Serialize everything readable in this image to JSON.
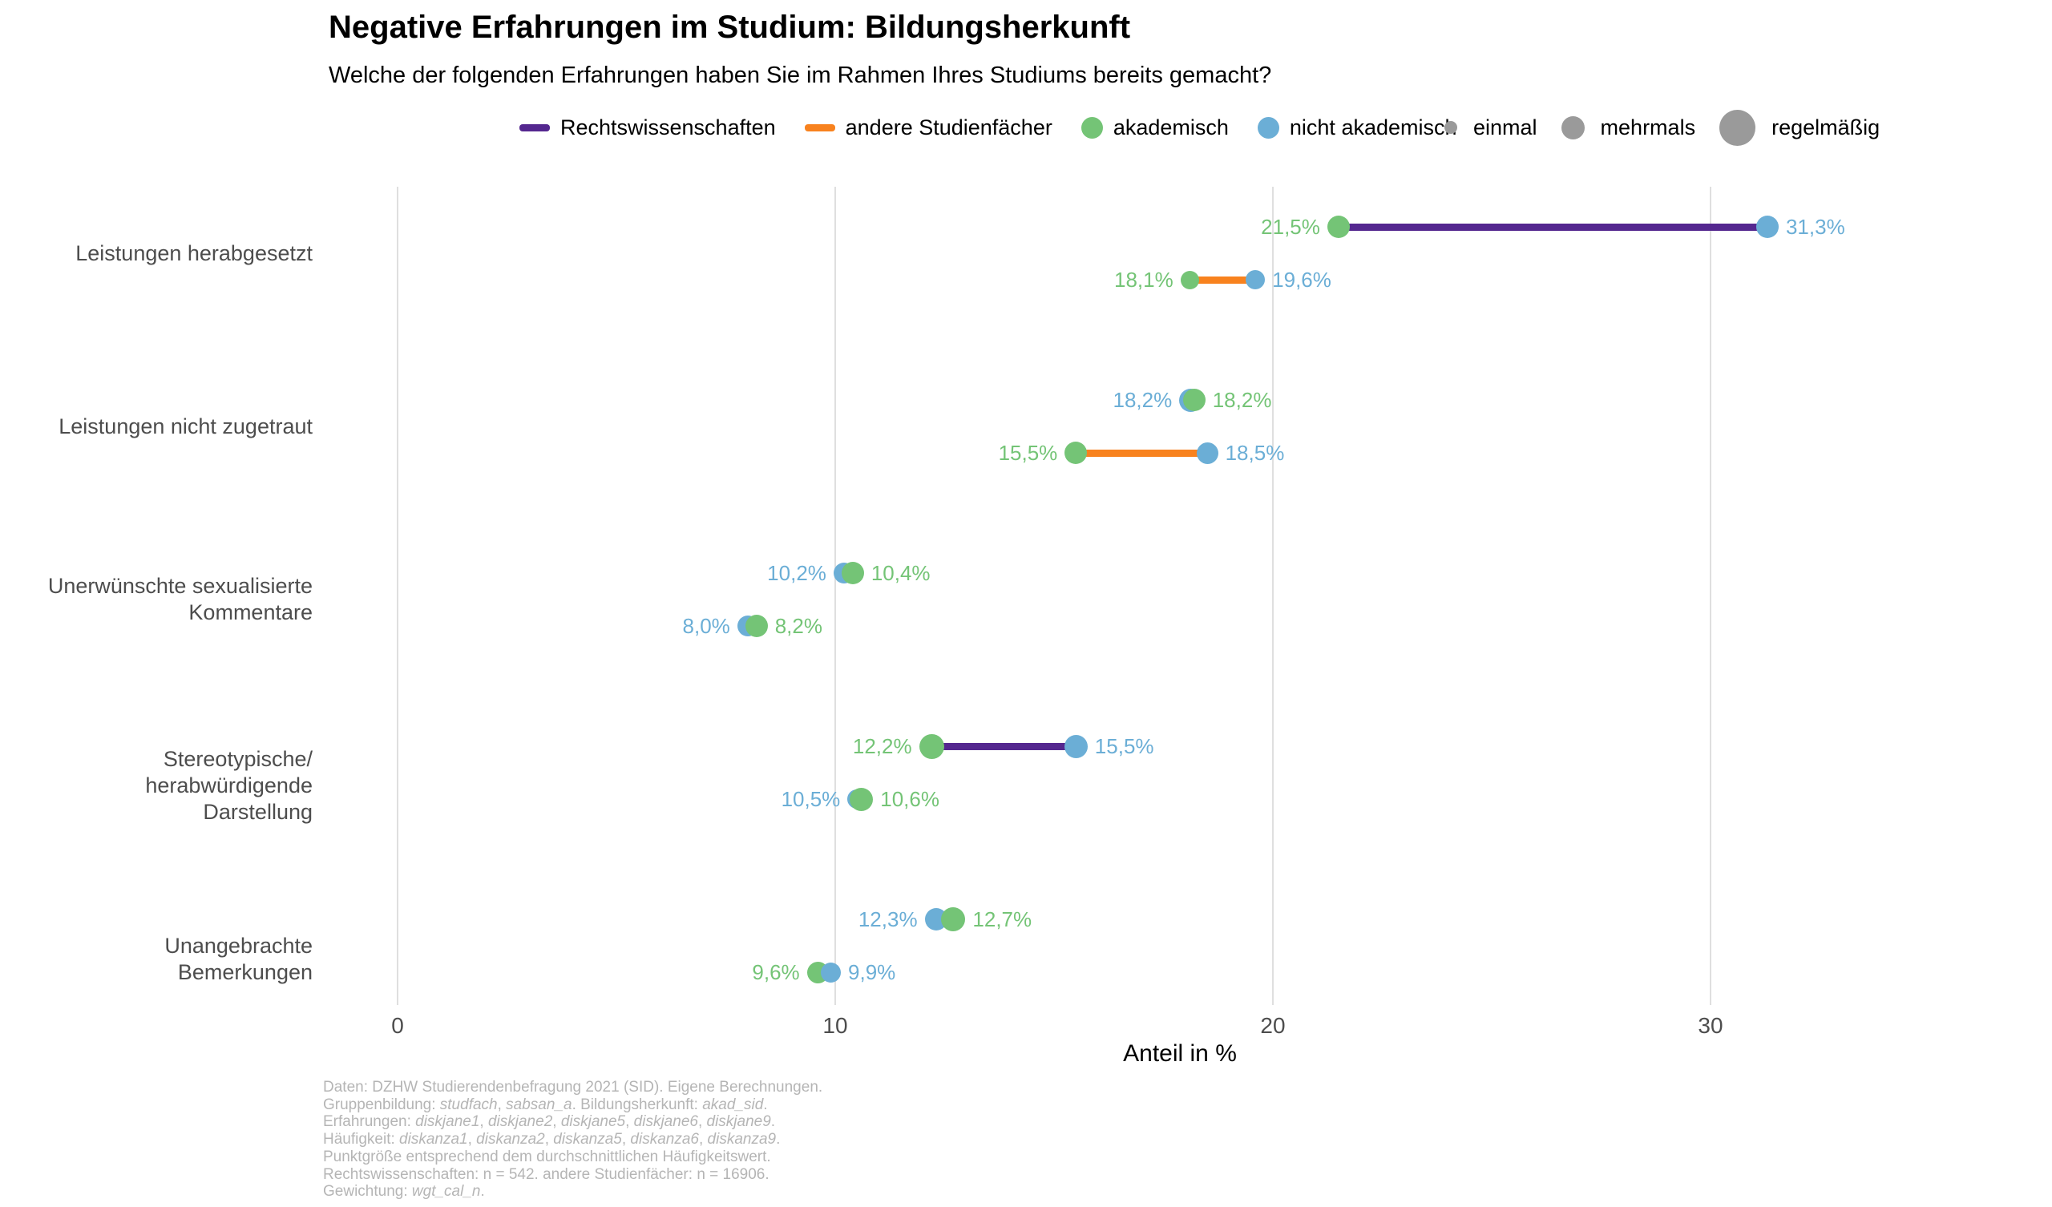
{
  "header": {
    "title": "Negative Erfahrungen im Studium: Bildungsherkunft",
    "subtitle": "Welche der folgenden Erfahrungen haben Sie im Rahmen Ihres Studiums bereits gemacht?"
  },
  "legend": {
    "series": [
      {
        "label": "Rechtswissenschaften",
        "color": "#54278f",
        "swatch": "line"
      },
      {
        "label": "andere Studienfächer",
        "color": "#f8821e",
        "swatch": "line"
      },
      {
        "label": "akademisch",
        "color": "#74c476",
        "swatch": "dot"
      },
      {
        "label": "nicht akademisch",
        "color": "#6baed6",
        "swatch": "dot"
      }
    ],
    "sizes": [
      {
        "label": "einmal",
        "diameter": 16
      },
      {
        "label": "mehrmals",
        "diameter": 29
      },
      {
        "label": "regelmäßig",
        "diameter": 45
      }
    ],
    "size_dot_color": "#9a9a9a"
  },
  "chart_data": {
    "type": "scatter",
    "subtype": "dumbbell",
    "xlabel": "Anteil in %",
    "x_ticks": [
      0,
      10,
      20,
      30
    ],
    "xlim": [
      0,
      35.8
    ],
    "grid": "vertical-only",
    "legend_position": "top",
    "origin_colors": {
      "akademisch": "#74c476",
      "nicht akademisch": "#6baed6"
    },
    "group_colors": {
      "Rechtswissenschaften": "#54278f",
      "andere Studienfächer": "#f8821e"
    },
    "categories": [
      {
        "label": "Leistungen herabgesetzt",
        "label_lines": [
          "Leistungen herabgesetzt"
        ],
        "groups": [
          {
            "name": "Rechtswissenschaften",
            "connector": true,
            "points": [
              {
                "origin": "akademisch",
                "value": 21.5,
                "label": "21,5%",
                "side": "left",
                "size": 28,
                "z": 1
              },
              {
                "origin": "nicht akademisch",
                "value": 31.3,
                "label": "31,3%",
                "side": "right",
                "size": 28,
                "z": 2
              }
            ]
          },
          {
            "name": "andere Studienfächer",
            "connector": true,
            "points": [
              {
                "origin": "akademisch",
                "value": 18.1,
                "label": "18,1%",
                "side": "left",
                "size": 23,
                "z": 1
              },
              {
                "origin": "nicht akademisch",
                "value": 19.6,
                "label": "19,6%",
                "side": "right",
                "size": 24,
                "z": 2
              }
            ]
          }
        ]
      },
      {
        "label": "Leistungen nicht zugetraut",
        "label_lines": [
          "Leistungen nicht zugetraut"
        ],
        "groups": [
          {
            "name": "Rechtswissenschaften",
            "connector": false,
            "points": [
              {
                "origin": "nicht akademisch",
                "value": 18.2,
                "label": "18,2%",
                "side": "left",
                "size": 29,
                "z": 1,
                "dx": -4
              },
              {
                "origin": "akademisch",
                "value": 18.2,
                "label": "18,2%",
                "side": "right",
                "size": 28,
                "z": 2
              }
            ]
          },
          {
            "name": "andere Studienfächer",
            "connector": true,
            "points": [
              {
                "origin": "akademisch",
                "value": 15.5,
                "label": "15,5%",
                "side": "left",
                "size": 28,
                "z": 1
              },
              {
                "origin": "nicht akademisch",
                "value": 18.5,
                "label": "18,5%",
                "side": "right",
                "size": 27,
                "z": 2
              }
            ]
          }
        ]
      },
      {
        "label": "Unerwünschte sexualisierte Kommentare",
        "label_lines": [
          "Unerwünschte sexualisierte",
          "Kommentare"
        ],
        "groups": [
          {
            "name": "Rechtswissenschaften",
            "connector": false,
            "points": [
              {
                "origin": "nicht akademisch",
                "value": 10.2,
                "label": "10,2%",
                "side": "left",
                "size": 26,
                "z": 1
              },
              {
                "origin": "akademisch",
                "value": 10.4,
                "label": "10,4%",
                "side": "right",
                "size": 28,
                "z": 2
              }
            ]
          },
          {
            "name": "andere Studienfächer",
            "connector": false,
            "points": [
              {
                "origin": "nicht akademisch",
                "value": 8.0,
                "label": "8,0%",
                "side": "left",
                "size": 26,
                "z": 1
              },
              {
                "origin": "akademisch",
                "value": 8.2,
                "label": "8,2%",
                "side": "right",
                "size": 28,
                "z": 2
              }
            ]
          }
        ]
      },
      {
        "label": "Stereotypische/herabwürdigende Darstellung",
        "label_lines": [
          "Stereotypische/",
          "herabwürdigende Darstellung"
        ],
        "groups": [
          {
            "name": "Rechtswissenschaften",
            "connector": true,
            "points": [
              {
                "origin": "akademisch",
                "value": 12.2,
                "label": "12,2%",
                "side": "left",
                "size": 31,
                "z": 1
              },
              {
                "origin": "nicht akademisch",
                "value": 15.5,
                "label": "15,5%",
                "side": "right",
                "size": 29,
                "z": 2
              }
            ]
          },
          {
            "name": "andere Studienfächer",
            "connector": false,
            "points": [
              {
                "origin": "nicht akademisch",
                "value": 10.5,
                "label": "10,5%",
                "side": "left",
                "size": 24,
                "z": 1
              },
              {
                "origin": "akademisch",
                "value": 10.6,
                "label": "10,6%",
                "side": "right",
                "size": 29,
                "z": 2
              }
            ]
          }
        ]
      },
      {
        "label": "Unangebrachte Bemerkungen",
        "label_lines": [
          "Unangebrachte Bemerkungen"
        ],
        "groups": [
          {
            "name": "Rechtswissenschaften",
            "connector": false,
            "points": [
              {
                "origin": "nicht akademisch",
                "value": 12.3,
                "label": "12,3%",
                "side": "left",
                "size": 28,
                "z": 1
              },
              {
                "origin": "akademisch",
                "value": 12.7,
                "label": "12,7%",
                "side": "right",
                "size": 30,
                "z": 2
              }
            ]
          },
          {
            "name": "andere Studienfächer",
            "connector": false,
            "points": [
              {
                "origin": "akademisch",
                "value": 9.6,
                "label": "9,6%",
                "side": "left",
                "size": 27,
                "z": 1
              },
              {
                "origin": "nicht akademisch",
                "value": 9.9,
                "label": "9,9%",
                "side": "right",
                "size": 25,
                "z": 2
              }
            ]
          }
        ]
      }
    ]
  },
  "caption": {
    "lines": [
      [
        {
          "t": "Daten: DZHW Studierendenbefragung 2021 (SID). Eigene Berechnungen.",
          "i": false
        }
      ],
      [
        {
          "t": "Gruppenbildung: ",
          "i": false
        },
        {
          "t": "studfach",
          "i": true
        },
        {
          "t": ", ",
          "i": false
        },
        {
          "t": "sabsan_a",
          "i": true
        },
        {
          "t": ". Bildungsherkunft: ",
          "i": false
        },
        {
          "t": "akad_sid",
          "i": true
        },
        {
          "t": ".",
          "i": false
        }
      ],
      [
        {
          "t": "Erfahrungen: ",
          "i": false
        },
        {
          "t": "diskjane1",
          "i": true
        },
        {
          "t": ", ",
          "i": false
        },
        {
          "t": "diskjane2",
          "i": true
        },
        {
          "t": ", ",
          "i": false
        },
        {
          "t": "diskjane5",
          "i": true
        },
        {
          "t": ", ",
          "i": false
        },
        {
          "t": "diskjane6",
          "i": true
        },
        {
          "t": ", ",
          "i": false
        },
        {
          "t": "diskjane9",
          "i": true
        },
        {
          "t": ".",
          "i": false
        }
      ],
      [
        {
          "t": "Häufigkeit: ",
          "i": false
        },
        {
          "t": "diskanza1",
          "i": true
        },
        {
          "t": ", ",
          "i": false
        },
        {
          "t": "diskanza2",
          "i": true
        },
        {
          "t": ", ",
          "i": false
        },
        {
          "t": "diskanza5",
          "i": true
        },
        {
          "t": ", ",
          "i": false
        },
        {
          "t": "diskanza6",
          "i": true
        },
        {
          "t": ", ",
          "i": false
        },
        {
          "t": "diskanza9",
          "i": true
        },
        {
          "t": ".",
          "i": false
        }
      ],
      [
        {
          "t": "Punktgröße entsprechend dem durchschnittlichen Häufigkeitswert.",
          "i": false
        }
      ],
      [
        {
          "t": "Rechtswissenschaften: n = 542. andere Studienfächer: n = 16906.",
          "i": false
        }
      ],
      [
        {
          "t": "Gewichtung: ",
          "i": false
        },
        {
          "t": "wgt_cal_n",
          "i": true
        },
        {
          "t": ".",
          "i": false
        }
      ]
    ]
  }
}
